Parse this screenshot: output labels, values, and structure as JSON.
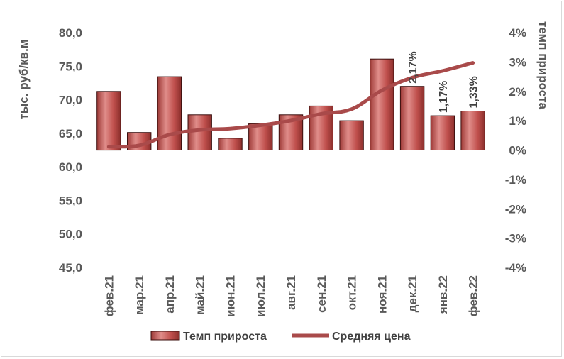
{
  "chart_data": {
    "type": "bar+line",
    "categories": [
      "фев.21",
      "мар.21",
      "апр.21",
      "май.21",
      "июн.21",
      "июл.21",
      "авг.21",
      "сен.21",
      "окт.21",
      "ноя.21",
      "дек.21",
      "янв.22",
      "фев.22"
    ],
    "series": [
      {
        "name": "Темп прироста",
        "type": "bar",
        "axis": "right",
        "values": [
          2.0,
          0.6,
          2.5,
          1.2,
          0.4,
          0.9,
          1.2,
          1.5,
          1.0,
          3.1,
          2.17,
          1.17,
          1.33
        ]
      },
      {
        "name": "Средняя цена",
        "type": "line",
        "axis": "left",
        "values": [
          63.0,
          63.2,
          64.8,
          65.5,
          65.7,
          66.2,
          66.9,
          67.9,
          68.6,
          71.4,
          73.3,
          74.3,
          75.5
        ]
      }
    ],
    "data_labels": [
      {
        "index": 10,
        "text": "2,17%"
      },
      {
        "index": 11,
        "text": "1,17%"
      },
      {
        "index": 12,
        "text": "1,33%"
      }
    ],
    "left_axis": {
      "label": "тыс. руб/кв.м",
      "ylim": [
        45,
        80
      ],
      "ticks": [
        "80,0",
        "75,0",
        "70,0",
        "65,0",
        "60,0",
        "55,0",
        "50,0",
        "45,0"
      ],
      "tick_values": [
        80,
        75,
        70,
        65,
        60,
        55,
        50,
        45
      ]
    },
    "right_axis": {
      "label": "темп прироста",
      "ylim": [
        -4,
        4
      ],
      "ticks": [
        "4%",
        "3%",
        "2%",
        "1%",
        "0%",
        "-1%",
        "-2%",
        "-3%",
        "-4%"
      ],
      "tick_values": [
        4,
        3,
        2,
        1,
        0,
        -1,
        -2,
        -3,
        -4
      ]
    },
    "grid": false,
    "legend_position": "bottom",
    "colors": {
      "bar_fill": "#c0504d",
      "bar_stroke": "#3b0f0e",
      "line": "#a94a4a"
    }
  }
}
